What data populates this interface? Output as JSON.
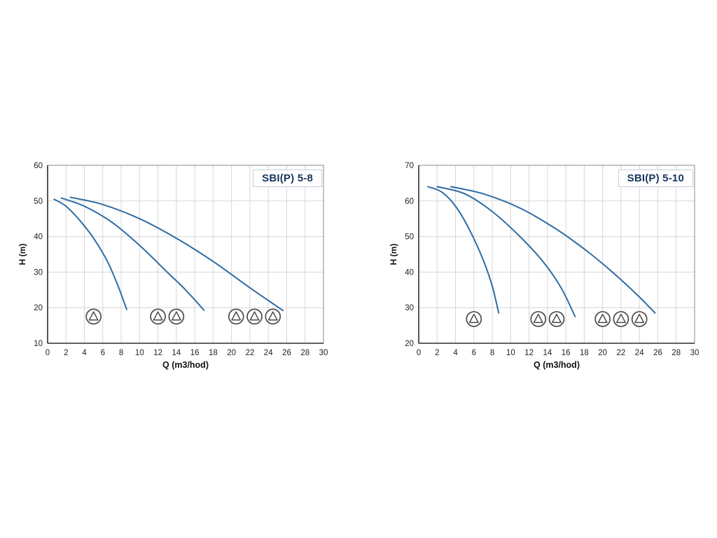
{
  "colors": {
    "curve": "#2e6da4",
    "grid": "#d6d6d6",
    "axis": "#2b2b2b",
    "tick_text": "#222222",
    "title_text": "#17365d",
    "pump_icon": "#4a4a4a"
  },
  "chart_data": [
    {
      "type": "line",
      "title": "SBI(P) 5-8",
      "xlabel": "Q (m3/hod)",
      "ylabel": "H (m)",
      "xlim": [
        0,
        30
      ],
      "ylim": [
        10,
        60
      ],
      "xticks": [
        0,
        2,
        4,
        6,
        8,
        10,
        12,
        14,
        16,
        18,
        20,
        22,
        24,
        26,
        28,
        30
      ],
      "yticks": [
        10,
        20,
        30,
        40,
        50,
        60
      ],
      "grid": true,
      "legend": "none",
      "series": [
        {
          "name": "1-pump-curve",
          "points": [
            [
              0.7,
              50.5
            ],
            [
              2,
              48.5
            ],
            [
              3.5,
              44.5
            ],
            [
              5,
              39.5
            ],
            [
              6.5,
              33
            ],
            [
              7.6,
              26.5
            ],
            [
              8.6,
              19.5
            ]
          ]
        },
        {
          "name": "2-pumps-curve",
          "points": [
            [
              1.5,
              50.8
            ],
            [
              4,
              48.5
            ],
            [
              7,
              44
            ],
            [
              10,
              37.5
            ],
            [
              13,
              30
            ],
            [
              15,
              25
            ],
            [
              17,
              19.3
            ]
          ]
        },
        {
          "name": "3-pumps-curve",
          "points": [
            [
              2.5,
              51
            ],
            [
              6,
              49
            ],
            [
              10,
              45
            ],
            [
              14,
              39.5
            ],
            [
              18,
              33
            ],
            [
              21.5,
              26.5
            ],
            [
              24,
              22
            ],
            [
              25.6,
              19.2
            ]
          ]
        }
      ],
      "pump_symbols": [
        {
          "group": 1,
          "q": 5,
          "h": 17.5
        },
        {
          "group": 2,
          "q": 12,
          "h": 17.5
        },
        {
          "group": 2,
          "q": 14,
          "h": 17.5
        },
        {
          "group": 3,
          "q": 20.5,
          "h": 17.5
        },
        {
          "group": 3,
          "q": 22.5,
          "h": 17.5
        },
        {
          "group": 3,
          "q": 24.5,
          "h": 17.5
        }
      ]
    },
    {
      "type": "line",
      "title": "SBI(P) 5-10",
      "xlabel": "Q (m3/hod)",
      "ylabel": "H (m)",
      "xlim": [
        0,
        30
      ],
      "ylim": [
        20,
        70
      ],
      "xticks": [
        0,
        2,
        4,
        6,
        8,
        10,
        12,
        14,
        16,
        18,
        20,
        22,
        24,
        26,
        28,
        30
      ],
      "yticks": [
        20,
        30,
        40,
        50,
        60,
        70
      ],
      "grid": true,
      "legend": "none",
      "series": [
        {
          "name": "1-pump-curve",
          "points": [
            [
              1,
              64
            ],
            [
              2.5,
              62.5
            ],
            [
              4,
              58.5
            ],
            [
              5.5,
              52
            ],
            [
              7,
              43.5
            ],
            [
              8,
              36
            ],
            [
              8.7,
              28.5
            ]
          ]
        },
        {
          "name": "2-pumps-curve",
          "points": [
            [
              2,
              64
            ],
            [
              5,
              62
            ],
            [
              8,
              57
            ],
            [
              11,
              50
            ],
            [
              13.5,
              43
            ],
            [
              15.5,
              35.5
            ],
            [
              17,
              27.5
            ]
          ]
        },
        {
          "name": "3-pumps-curve",
          "points": [
            [
              3.5,
              64
            ],
            [
              7,
              62
            ],
            [
              11,
              58
            ],
            [
              15,
              52
            ],
            [
              18.5,
              45.5
            ],
            [
              21.5,
              39
            ],
            [
              24,
              33
            ],
            [
              25.7,
              28.5
            ]
          ]
        }
      ],
      "pump_symbols": [
        {
          "group": 1,
          "q": 6,
          "h": 26.8
        },
        {
          "group": 2,
          "q": 13,
          "h": 26.8
        },
        {
          "group": 2,
          "q": 15,
          "h": 26.8
        },
        {
          "group": 3,
          "q": 20,
          "h": 26.8
        },
        {
          "group": 3,
          "q": 22,
          "h": 26.8
        },
        {
          "group": 3,
          "q": 24,
          "h": 26.8
        }
      ]
    }
  ]
}
